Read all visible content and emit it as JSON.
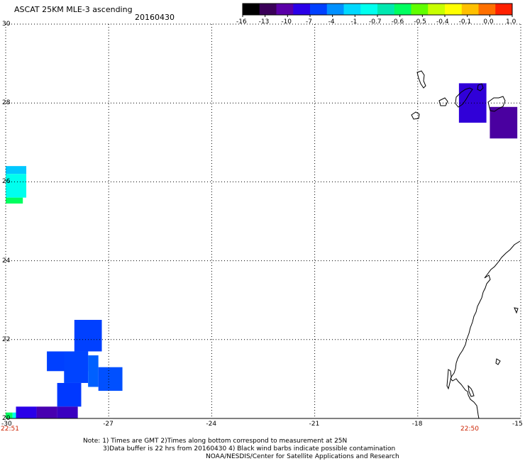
{
  "title": "ASCAT 25KM MLE-3 ascending",
  "date": "20160430",
  "colorbar": {
    "colors": [
      "#000000",
      "#3a0058",
      "#5a00a8",
      "#2a00e8",
      "#0040ff",
      "#0090ff",
      "#00d8ff",
      "#00ffee",
      "#00e8b0",
      "#00ff60",
      "#60ff00",
      "#c8ff00",
      "#ffff00",
      "#ffc000",
      "#ff7000",
      "#ff2000"
    ],
    "labels": [
      "-16",
      "-13",
      "-10",
      "-7",
      "-4",
      "-1",
      "-0.7",
      "-0.6",
      "-0.5",
      "-0.4",
      "-0.1",
      "0.0",
      "1.0"
    ]
  },
  "map": {
    "lon_range": [
      -30,
      -15
    ],
    "lat_range": [
      20,
      30
    ],
    "x_ticks": [
      "-30",
      "-27",
      "-24",
      "-21",
      "-18",
      "-15"
    ],
    "y_ticks": [
      "20",
      "22",
      "24",
      "26",
      "28",
      "30"
    ],
    "time_start": "22:51",
    "time_end": "22:50",
    "cells": [
      {
        "lon0": -30.0,
        "lon1": -29.4,
        "lat0": 26.2,
        "lat1": 26.4,
        "color": "#00c8ff"
      },
      {
        "lon0": -30.0,
        "lon1": -29.4,
        "lat0": 25.6,
        "lat1": 26.2,
        "color": "#00ffee"
      },
      {
        "lon0": -30.0,
        "lon1": -29.5,
        "lat0": 25.45,
        "lat1": 25.6,
        "color": "#00ff60"
      },
      {
        "lon0": -28.8,
        "lon1": -27.6,
        "lat0": 21.2,
        "lat1": 21.7,
        "color": "#0040ff"
      },
      {
        "lon0": -28.0,
        "lon1": -27.2,
        "lat0": 21.7,
        "lat1": 22.5,
        "color": "#0040ff"
      },
      {
        "lon0": -28.3,
        "lon1": -27.6,
        "lat0": 20.9,
        "lat1": 21.7,
        "color": "#0044ff"
      },
      {
        "lon0": -28.5,
        "lon1": -27.8,
        "lat0": 20.3,
        "lat1": 20.9,
        "color": "#0038ff"
      },
      {
        "lon0": -27.6,
        "lon1": -27.3,
        "lat0": 20.8,
        "lat1": 21.6,
        "color": "#0060ff"
      },
      {
        "lon0": -27.3,
        "lon1": -26.6,
        "lat0": 20.7,
        "lat1": 21.3,
        "color": "#0050ff"
      },
      {
        "lon0": -29.7,
        "lon1": -29.1,
        "lat0": 20.0,
        "lat1": 20.3,
        "color": "#2a00e8"
      },
      {
        "lon0": -29.1,
        "lon1": -28.5,
        "lat0": 20.0,
        "lat1": 20.3,
        "color": "#4800b0"
      },
      {
        "lon0": -28.5,
        "lon1": -27.9,
        "lat0": 20.0,
        "lat1": 20.3,
        "color": "#3a00c0"
      },
      {
        "lon0": -30.0,
        "lon1": -29.8,
        "lat0": 20.0,
        "lat1": 20.15,
        "color": "#00ff60"
      },
      {
        "lon0": -29.8,
        "lon1": -29.7,
        "lat0": 20.0,
        "lat1": 20.15,
        "color": "#00ffee"
      },
      {
        "lon0": -16.8,
        "lon1": -16.0,
        "lat0": 27.5,
        "lat1": 28.5,
        "color": "#3000d8"
      },
      {
        "lon0": -15.9,
        "lon1": -15.1,
        "lat0": 27.1,
        "lat1": 27.9,
        "color": "#4a00a0"
      }
    ]
  },
  "footer": {
    "line1": "Note: 1) Times are GMT 2)Times along bottom correspond to measurement at 25N",
    "line2": "3)Data buffer is 22 hrs from 20160430 4) Black wind barbs indicate possible contamination",
    "line3": "NOAA/NESDIS/Center for Satellite Applications and Research"
  }
}
